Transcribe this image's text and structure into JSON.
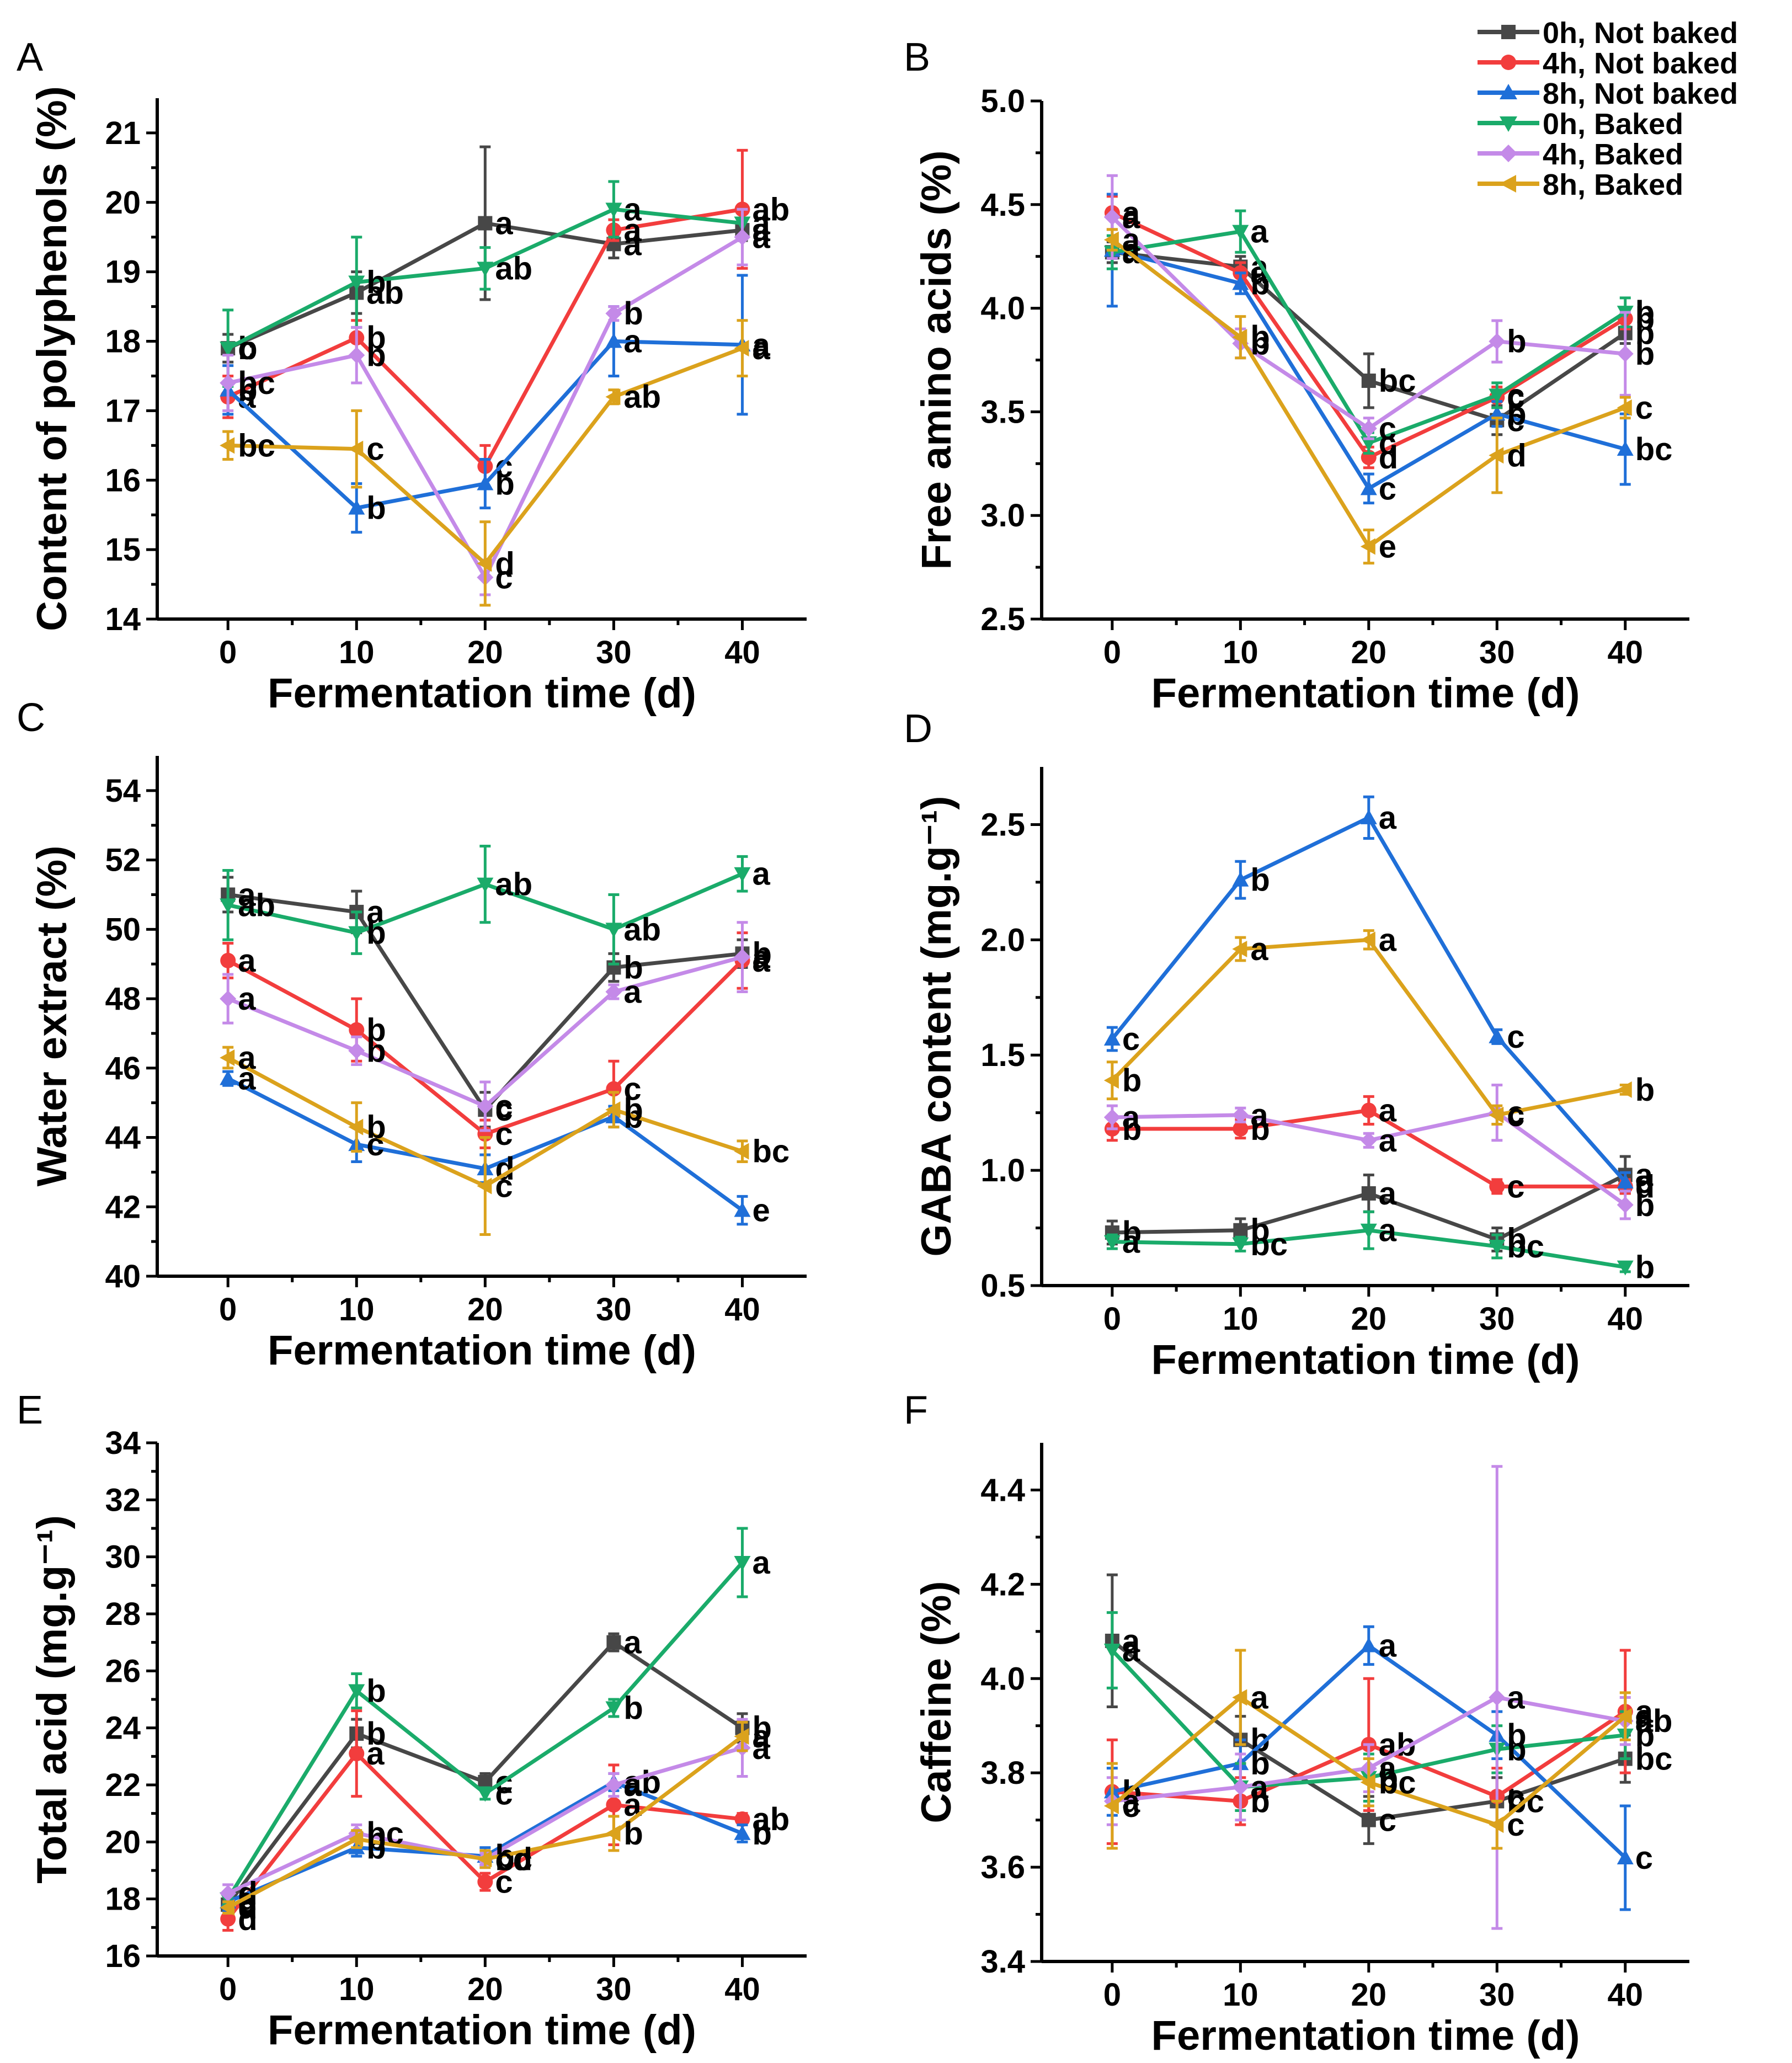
{
  "legend": [
    {
      "name": "0h, Not baked",
      "color": "#474747",
      "marker": "square"
    },
    {
      "name": "4h, Not baked",
      "color": "#f23d3d",
      "marker": "circle"
    },
    {
      "name": "8h, Not baked",
      "color": "#1f6fd8",
      "marker": "triangle-up"
    },
    {
      "name": "0h, Baked",
      "color": "#1aab6a",
      "marker": "triangle-down"
    },
    {
      "name": "4h, Baked",
      "color": "#c48ae8",
      "marker": "diamond"
    },
    {
      "name": "8h, Baked",
      "color": "#dba21c",
      "marker": "triangle-left"
    }
  ],
  "chart_data": [
    {
      "panel": "A",
      "type": "line",
      "xlabel": "Fermentation time (d)",
      "ylabel": "Content of polyphenols (%)",
      "xlim": [
        -5.5,
        45
      ],
      "ylim": [
        14,
        21.5
      ],
      "yticks": [
        14,
        15,
        16,
        17,
        18,
        19,
        20,
        21
      ],
      "x": [
        0,
        10,
        20,
        30,
        40
      ],
      "series": [
        {
          "name": "0h, Not baked",
          "values": [
            17.9,
            18.7,
            19.7,
            19.4,
            19.6
          ],
          "err": [
            0.2,
            0.3,
            1.1,
            0.2,
            0.15
          ],
          "labels": [
            "b",
            "ab",
            "a",
            "a",
            "a"
          ]
        },
        {
          "name": "4h, Not baked",
          "values": [
            17.2,
            18.05,
            16.2,
            19.6,
            19.9
          ],
          "err": [
            0.3,
            0.25,
            0.3,
            0.15,
            0.85
          ],
          "labels": [
            "a",
            "b",
            "c",
            "a",
            "ab"
          ]
        },
        {
          "name": "8h, Not baked",
          "values": [
            17.3,
            15.6,
            15.95,
            18.0,
            17.95
          ],
          "err": [
            0.35,
            0.35,
            0.35,
            0.5,
            1.0
          ],
          "labels": [
            "b",
            "b",
            "b",
            "a",
            "a"
          ]
        },
        {
          "name": "0h, Baked",
          "values": [
            17.9,
            18.85,
            19.05,
            19.9,
            19.7
          ],
          "err": [
            0.55,
            0.65,
            0.3,
            0.4,
            0.2
          ],
          "labels": [
            "c",
            "b",
            "ab",
            "a",
            "a"
          ]
        },
        {
          "name": "4h, Baked",
          "values": [
            17.4,
            17.8,
            14.6,
            18.4,
            19.5
          ],
          "err": [
            0.4,
            0.4,
            0.25,
            0.1,
            0.4
          ],
          "labels": [
            "bc",
            "b",
            "c",
            "b",
            "a"
          ]
        },
        {
          "name": "8h, Baked",
          "values": [
            16.5,
            16.45,
            14.8,
            17.2,
            17.9
          ],
          "err": [
            0.2,
            0.55,
            0.6,
            0.1,
            0.4
          ],
          "labels": [
            "bc",
            "c",
            "d",
            "ab",
            "a"
          ]
        }
      ]
    },
    {
      "panel": "B",
      "type": "line",
      "xlabel": "Fermentation time (d)",
      "ylabel": "Free amino acids (%)",
      "xlim": [
        -5.5,
        45
      ],
      "ylim": [
        2.5,
        5.0
      ],
      "yticks": [
        2.5,
        3.0,
        3.5,
        4.0,
        4.5,
        5.0
      ],
      "x": [
        0,
        10,
        20,
        30,
        40
      ],
      "series": [
        {
          "name": "0h, Not baked",
          "values": [
            4.27,
            4.2,
            3.65,
            3.46,
            3.88
          ],
          "err": [
            0.05,
            0.05,
            0.13,
            0.07,
            0.05
          ],
          "labels": [
            "a",
            "a",
            "bc",
            "c",
            "b"
          ]
        },
        {
          "name": "4h, Not baked",
          "values": [
            4.46,
            4.17,
            3.28,
            3.57,
            3.95
          ],
          "err": [
            0.08,
            0.05,
            0.05,
            0.05,
            0.05
          ],
          "labels": [
            "a",
            "a",
            "d",
            "c",
            "b"
          ]
        },
        {
          "name": "8h, Not baked",
          "values": [
            4.28,
            4.12,
            3.13,
            3.49,
            3.32
          ],
          "err": [
            0.27,
            0.05,
            0.07,
            0.06,
            0.17
          ],
          "labels": [
            "a",
            "b",
            "c",
            "b",
            "bc"
          ]
        },
        {
          "name": "0h, Baked",
          "values": [
            4.27,
            4.37,
            3.35,
            3.58,
            3.98
          ],
          "err": [
            0.08,
            0.1,
            0.05,
            0.06,
            0.07
          ],
          "labels": [
            "a",
            "a",
            "c",
            "c",
            "b"
          ]
        },
        {
          "name": "4h, Baked",
          "values": [
            4.44,
            3.83,
            3.42,
            3.84,
            3.78
          ],
          "err": [
            0.2,
            0.07,
            0.05,
            0.1,
            0.2
          ],
          "labels": [
            "a",
            "b",
            "c",
            "b",
            "b"
          ]
        },
        {
          "name": "8h, Baked",
          "values": [
            4.33,
            3.86,
            2.85,
            3.29,
            3.52
          ],
          "err": [
            0.05,
            0.1,
            0.08,
            0.18,
            0.05
          ],
          "labels": [
            "a",
            "b",
            "e",
            "d",
            "c"
          ]
        }
      ]
    },
    {
      "panel": "C",
      "type": "line",
      "xlabel": "Fermentation time (d)",
      "ylabel": "Water extract (%)",
      "xlim": [
        -5.5,
        45
      ],
      "ylim": [
        40,
        55
      ],
      "yticks": [
        40,
        42,
        44,
        46,
        48,
        50,
        52,
        54
      ],
      "x": [
        0,
        10,
        20,
        30,
        40
      ],
      "series": [
        {
          "name": "0h, Not baked",
          "values": [
            51.0,
            50.5,
            44.8,
            48.9,
            49.3
          ],
          "err": [
            0.5,
            0.6,
            0.5,
            0.4,
            0.4
          ],
          "labels": [
            "a",
            "a",
            "c",
            "b",
            "b"
          ]
        },
        {
          "name": "4h, Not baked",
          "values": [
            49.1,
            47.1,
            44.1,
            45.4,
            49.1
          ],
          "err": [
            0.5,
            0.9,
            0.4,
            0.8,
            0.8
          ],
          "labels": [
            "a",
            "b",
            "c",
            "c",
            "a"
          ]
        },
        {
          "name": "8h, Not baked",
          "values": [
            45.7,
            43.8,
            43.1,
            44.6,
            41.9
          ],
          "err": [
            0.2,
            0.5,
            0.4,
            0.3,
            0.4
          ],
          "labels": [
            "a",
            "c",
            "d",
            "b",
            "e"
          ]
        },
        {
          "name": "0h, Baked",
          "values": [
            50.7,
            49.9,
            51.3,
            50.0,
            51.6
          ],
          "err": [
            1.0,
            0.6,
            1.1,
            1.0,
            0.5
          ],
          "labels": [
            "ab",
            "b",
            "ab",
            "ab",
            "a"
          ]
        },
        {
          "name": "4h, Baked",
          "values": [
            48.0,
            46.5,
            44.9,
            48.2,
            49.2
          ],
          "err": [
            0.7,
            0.4,
            0.7,
            0.2,
            1.0
          ],
          "labels": [
            "a",
            "b",
            "c",
            "a",
            "a"
          ]
        },
        {
          "name": "8h, Baked",
          "values": [
            46.3,
            44.3,
            42.6,
            44.8,
            43.6
          ],
          "err": [
            0.3,
            0.7,
            1.4,
            0.5,
            0.3
          ],
          "labels": [
            "a",
            "b",
            "c",
            "b",
            "bc"
          ]
        }
      ]
    },
    {
      "panel": "D",
      "type": "line",
      "xlabel": "Fermentation time (d)",
      "ylabel": "GABA content (mg.g⁻¹)",
      "xlim": [
        -5.5,
        45
      ],
      "ylim": [
        0.5,
        2.75
      ],
      "yticks": [
        0.5,
        1.0,
        1.5,
        2.0,
        2.5
      ],
      "x": [
        0,
        10,
        20,
        30,
        40
      ],
      "series": [
        {
          "name": "0h, Not baked",
          "values": [
            0.73,
            0.74,
            0.9,
            0.7,
            0.98
          ],
          "err": [
            0.05,
            0.05,
            0.08,
            0.05,
            0.08
          ],
          "labels": [
            "b",
            "b",
            "a",
            "b",
            "a"
          ]
        },
        {
          "name": "4h, Not baked",
          "values": [
            1.18,
            1.18,
            1.26,
            0.93,
            0.93
          ],
          "err": [
            0.05,
            0.04,
            0.06,
            0.03,
            0.03
          ],
          "labels": [
            "b",
            "b",
            "a",
            "c",
            "d"
          ]
        },
        {
          "name": "8h, Not baked",
          "values": [
            1.57,
            2.26,
            2.53,
            1.58,
            0.95
          ],
          "err": [
            0.05,
            0.08,
            0.09,
            0.03,
            0.04
          ],
          "labels": [
            "c",
            "b",
            "a",
            "c",
            "c"
          ]
        },
        {
          "name": "0h, Baked",
          "values": [
            0.69,
            0.68,
            0.74,
            0.67,
            0.58
          ],
          "err": [
            0.03,
            0.03,
            0.08,
            0.05,
            0.02
          ],
          "labels": [
            "a",
            "bc",
            "a",
            "bc",
            "b"
          ]
        },
        {
          "name": "4h, Baked",
          "values": [
            1.23,
            1.24,
            1.13,
            1.25,
            0.85
          ],
          "err": [
            0.05,
            0.03,
            0.03,
            0.12,
            0.06
          ],
          "labels": [
            "a",
            "a",
            "a",
            "c",
            "b"
          ]
        },
        {
          "name": "8h, Baked",
          "values": [
            1.39,
            1.96,
            2.0,
            1.24,
            1.35
          ],
          "err": [
            0.08,
            0.05,
            0.04,
            0.04,
            0.02
          ],
          "labels": [
            "b",
            "a",
            "a",
            "c",
            "b"
          ]
        }
      ]
    },
    {
      "panel": "E",
      "type": "line",
      "xlabel": "Fermentation time (d)",
      "ylabel": "Total acid (mg.g⁻¹)",
      "xlim": [
        -5.5,
        45
      ],
      "ylim": [
        16,
        34
      ],
      "yticks": [
        16,
        18,
        20,
        22,
        24,
        26,
        28,
        30,
        32,
        34
      ],
      "x": [
        0,
        10,
        20,
        30,
        40
      ],
      "series": [
        {
          "name": "0h, Not baked",
          "values": [
            17.8,
            23.8,
            22.1,
            27.0,
            24.0
          ],
          "err": [
            0.2,
            0.5,
            0.3,
            0.3,
            0.5
          ],
          "labels": [
            "c",
            "b",
            "c",
            "a",
            "b"
          ]
        },
        {
          "name": "4h, Not baked",
          "values": [
            17.3,
            23.1,
            18.6,
            21.3,
            20.8
          ],
          "err": [
            0.4,
            1.5,
            0.3,
            1.4,
            0.2
          ],
          "labels": [
            "d",
            "a",
            "c",
            "a",
            "ab"
          ]
        },
        {
          "name": "8h, Not baked",
          "values": [
            17.9,
            19.8,
            19.5,
            22.1,
            20.3
          ],
          "err": [
            0.3,
            0.3,
            0.3,
            0.3,
            0.3
          ],
          "labels": [
            "c",
            "b",
            "b",
            "ab",
            "b"
          ]
        },
        {
          "name": "0h, Baked",
          "values": [
            18.0,
            25.3,
            21.7,
            24.7,
            29.8
          ],
          "err": [
            0.2,
            0.6,
            0.2,
            0.3,
            1.2
          ],
          "labels": [
            "d",
            "b",
            "c",
            "b",
            "a"
          ]
        },
        {
          "name": "4h, Baked",
          "values": [
            18.2,
            20.3,
            19.4,
            22.0,
            23.3
          ],
          "err": [
            0.3,
            0.3,
            0.2,
            0.4,
            1.0
          ],
          "labels": [
            "d",
            "bc",
            "bc",
            "a",
            "a"
          ]
        },
        {
          "name": "8h, Baked",
          "values": [
            17.7,
            20.1,
            19.4,
            20.3,
            23.7
          ],
          "err": [
            0.2,
            0.3,
            0.3,
            0.6,
            0.5
          ],
          "labels": [
            "d",
            "b",
            "cd",
            "b",
            "a"
          ]
        }
      ]
    },
    {
      "panel": "F",
      "type": "line",
      "xlabel": "Fermentation time (d)",
      "ylabel": "Caffeine (%)",
      "xlim": [
        -5.5,
        45
      ],
      "ylim": [
        3.4,
        4.5
      ],
      "yticks": [
        3.4,
        3.6,
        3.8,
        4.0,
        4.2,
        4.4
      ],
      "x": [
        0,
        10,
        20,
        30,
        40
      ],
      "series": [
        {
          "name": "0h, Not baked",
          "values": [
            4.08,
            3.87,
            3.7,
            3.74,
            3.83
          ],
          "err": [
            0.14,
            0.05,
            0.05,
            0.05,
            0.05
          ],
          "labels": [
            "a",
            "b",
            "c",
            "bc",
            "bc"
          ]
        },
        {
          "name": "4h, Not baked",
          "values": [
            3.76,
            3.74,
            3.86,
            3.75,
            3.93
          ],
          "err": [
            0.11,
            0.05,
            0.14,
            0.06,
            0.13
          ],
          "labels": [
            "b",
            "b",
            "ab",
            "c",
            "a"
          ]
        },
        {
          "name": "8h, Not baked",
          "values": [
            3.76,
            3.82,
            4.07,
            3.88,
            3.62
          ],
          "err": [
            0.05,
            0.05,
            0.04,
            0.05,
            0.11
          ],
          "labels": [
            "b",
            "b",
            "a",
            "b",
            "c"
          ]
        },
        {
          "name": "0h, Baked",
          "values": [
            4.06,
            3.77,
            3.79,
            3.85,
            3.88
          ],
          "err": [
            0.08,
            0.05,
            0.05,
            0.05,
            0.05
          ],
          "labels": [
            "a",
            "a",
            "b",
            "b",
            "b"
          ]
        },
        {
          "name": "4h, Baked",
          "values": [
            3.74,
            3.77,
            3.81,
            3.96,
            3.91
          ],
          "err": [
            0.05,
            0.07,
            0.05,
            0.49,
            0.05
          ],
          "labels": [
            "a",
            "a",
            "a",
            "a",
            "ab"
          ]
        },
        {
          "name": "8h, Baked",
          "values": [
            3.73,
            3.96,
            3.78,
            3.69,
            3.92
          ],
          "err": [
            0.09,
            0.1,
            0.05,
            0.05,
            0.05
          ],
          "labels": [
            "c",
            "a",
            "bc",
            "c",
            "a"
          ]
        }
      ]
    }
  ]
}
